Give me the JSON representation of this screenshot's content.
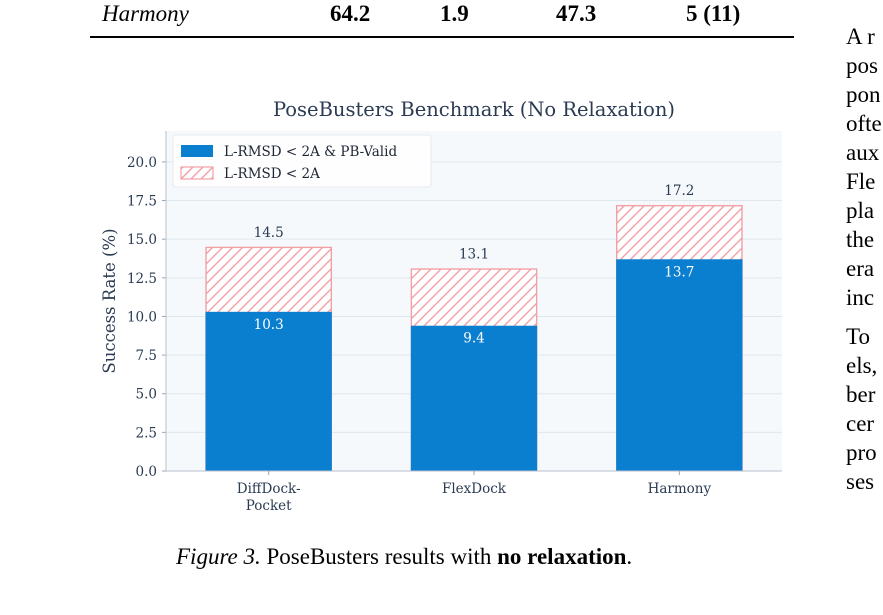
{
  "table_row": {
    "label": "Harmony",
    "cells": [
      "64.2",
      "1.9",
      "47.3",
      "5 (11)"
    ]
  },
  "caption": {
    "figure_label": "Figure 3.",
    "text_before": " PoseBusters results with ",
    "bold": "no relaxation",
    "text_after": "."
  },
  "side_text": {
    "para1": [
      "A r",
      "pos",
      "pon",
      "ofte",
      "aux",
      "Fle",
      "pla",
      "the",
      "era",
      "inc"
    ],
    "para2": [
      "To ",
      "els,",
      "ber",
      "cer",
      "pro",
      "ses"
    ]
  },
  "colors": {
    "solid": "#0a7fcf",
    "hatch": "#f2a0a6",
    "plot_bg": "#f5f9fc",
    "grid": "#dfe7ee",
    "text": "#2b3b52"
  },
  "chart_data": {
    "type": "bar",
    "title": "PoseBusters Benchmark (No Relaxation)",
    "ylabel": "Success Rate (%)",
    "xlabel": "",
    "ylim": [
      0,
      22
    ],
    "yticks": [
      "0.0",
      "2.5",
      "5.0",
      "7.5",
      "10.0",
      "12.5",
      "15.0",
      "17.5",
      "20.0"
    ],
    "categories": [
      "DiffDock-\nPocket",
      "FlexDock",
      "Harmony"
    ],
    "legend_position": "top-left",
    "series": [
      {
        "name": "L-RMSD < 2A & PB-Valid",
        "values": [
          10.3,
          9.4,
          13.7
        ],
        "labels": [
          "10.3",
          "9.4",
          "13.7"
        ]
      },
      {
        "name": "L-RMSD < 2A",
        "values": [
          14.5,
          13.1,
          17.2
        ],
        "labels": [
          "14.5",
          "13.1",
          "17.2"
        ]
      }
    ]
  }
}
